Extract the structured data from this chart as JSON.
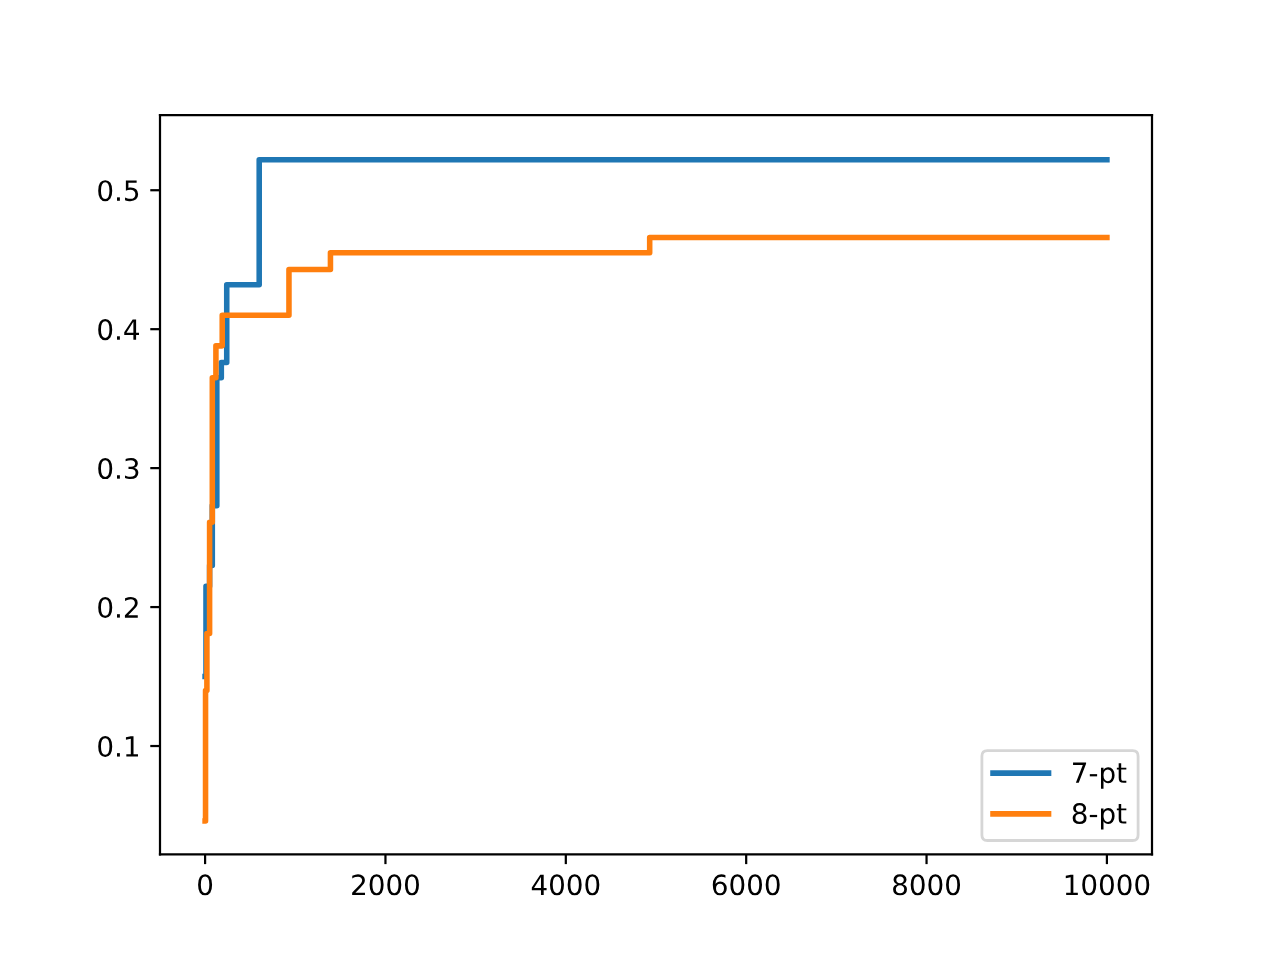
{
  "chart_data": {
    "type": "step",
    "series": [
      {
        "name": "7-pt",
        "color": "#1f77b4",
        "x": [
          0,
          10,
          50,
          80,
          130,
          180,
          240,
          600,
          10000
        ],
        "values": [
          0.15,
          0.215,
          0.23,
          0.273,
          0.365,
          0.376,
          0.432,
          0.522,
          0.522
        ]
      },
      {
        "name": "8-pt",
        "color": "#ff7f0e",
        "x": [
          0,
          5,
          20,
          50,
          80,
          120,
          190,
          930,
          1390,
          4930,
          10000
        ],
        "values": [
          0.046,
          0.14,
          0.181,
          0.261,
          0.365,
          0.388,
          0.41,
          0.443,
          0.455,
          0.466,
          0.466
        ]
      }
    ],
    "xlim": [
      -500,
      10500
    ],
    "xticks": [
      0,
      2000,
      4000,
      6000,
      8000,
      10000
    ],
    "ylim": [
      0.022,
      0.554
    ],
    "yticks": [
      0.1,
      0.2,
      0.3,
      0.4,
      0.5
    ],
    "grid": false,
    "legend": "lower right"
  }
}
